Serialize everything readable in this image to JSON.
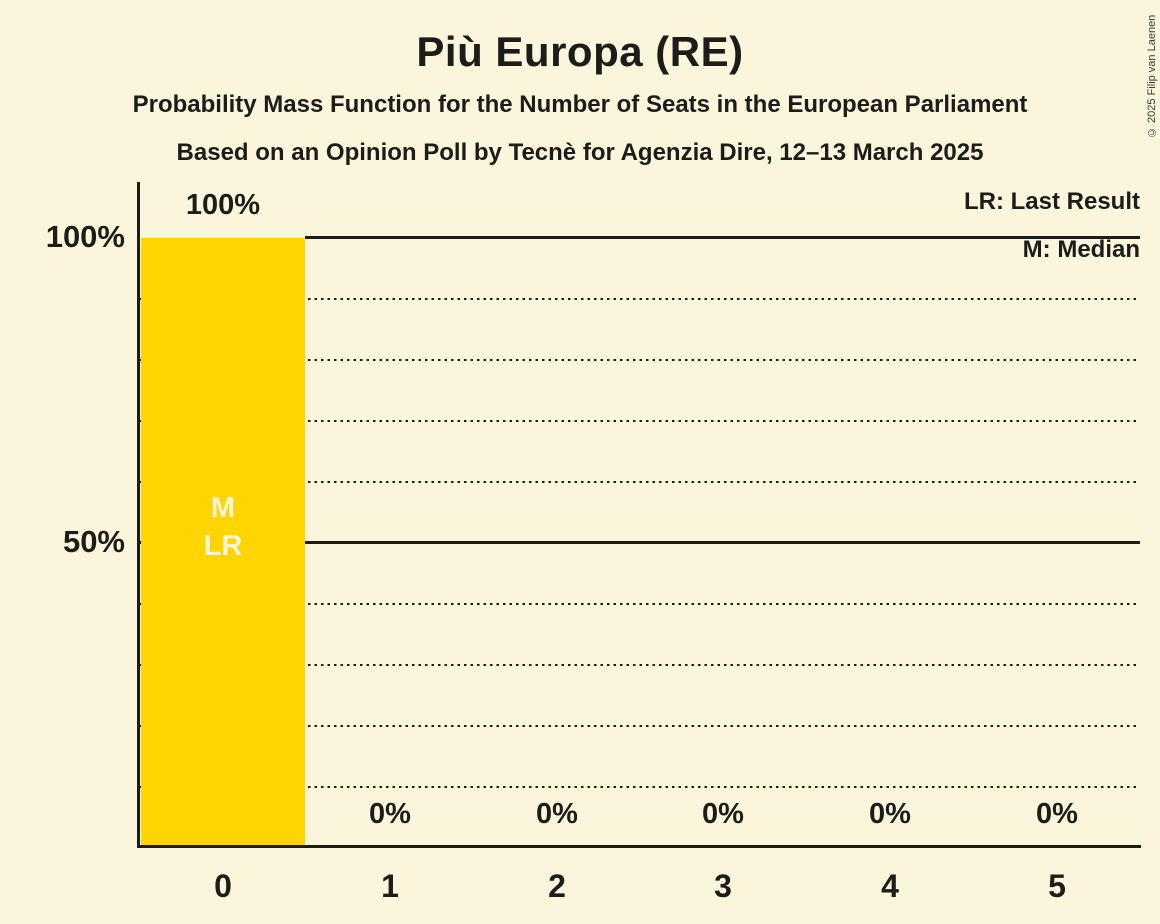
{
  "header": {
    "title": "Più Europa (RE)",
    "subtitle1": "Probability Mass Function for the Number of Seats in the European Parliament",
    "subtitle2": "Based on an Opinion Poll by Tecnè for Agenzia Dire, 12–13 March 2025",
    "copyright": "© 2025 Filip van Laenen"
  },
  "legend": {
    "last_result": "LR: Last Result",
    "median": "M: Median"
  },
  "colors": {
    "background": "#FBF5DC",
    "bar": "#FFD500",
    "text": "#1C1C1A",
    "bar_text": "#FBF5DC"
  },
  "chart_data": {
    "type": "bar",
    "title": "Più Europa (RE)",
    "categories": [
      "0",
      "1",
      "2",
      "3",
      "4",
      "5"
    ],
    "values": [
      100,
      0,
      0,
      0,
      0,
      0
    ],
    "value_labels": [
      "100%",
      "0%",
      "0%",
      "0%",
      "0%",
      "0%"
    ],
    "xlabel": "",
    "ylabel": "",
    "ylim": [
      0,
      100
    ],
    "ytick_labels": [
      "100%",
      "50%"
    ],
    "grid_step_percent": 10,
    "solid_lines_percent": [
      50,
      100
    ],
    "legend_position": "top-right",
    "annotations": {
      "bar_0_text": "M\nLR",
      "median_seats": 0,
      "last_result_seats": 0
    }
  }
}
